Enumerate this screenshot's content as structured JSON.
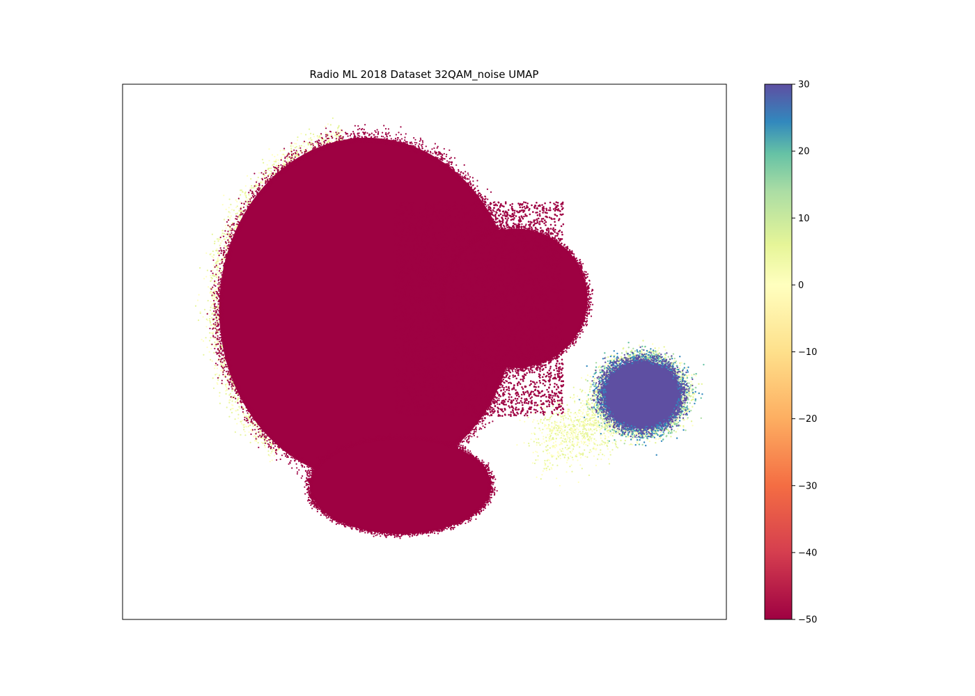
{
  "chart_data": {
    "type": "scatter",
    "title": "Radio ML 2018 Dataset 32QAM_noise UMAP",
    "xlabel": "",
    "ylabel": "",
    "axes_ticks_visible": false,
    "grid": false,
    "colormap": "Spectral",
    "colorbar": {
      "position": "right",
      "range": [
        -50,
        30
      ],
      "ticks": [
        30,
        20,
        10,
        0,
        -10,
        -20,
        -30,
        -40,
        -50
      ],
      "tick_labels": [
        "30",
        "20",
        "10",
        "0",
        "−10",
        "−20",
        "−30",
        "−40",
        "−50"
      ]
    },
    "series": [
      {
        "description_value": -50,
        "color": "#9e0142",
        "clusters": [
          {
            "cx": 0.405,
            "cy": 0.58,
            "rx": 0.245,
            "ry": 0.32
          },
          {
            "cx": 0.65,
            "cy": 0.6,
            "rx": 0.12,
            "ry": 0.13
          },
          {
            "cx": 0.46,
            "cy": 0.25,
            "rx": 0.15,
            "ry": 0.09
          }
        ]
      },
      {
        "description_value": 30,
        "color": "#5e4fa2",
        "clusters": [
          {
            "cx": 0.86,
            "cy": 0.42,
            "rx": 0.075,
            "ry": 0.075
          }
        ]
      }
    ],
    "halo_values": [
      -10,
      0,
      10,
      20
    ],
    "halo_colors": [
      "#ffffbf",
      "#e6f598",
      "#abdda4",
      "#66c2a5",
      "#3288bd"
    ]
  }
}
